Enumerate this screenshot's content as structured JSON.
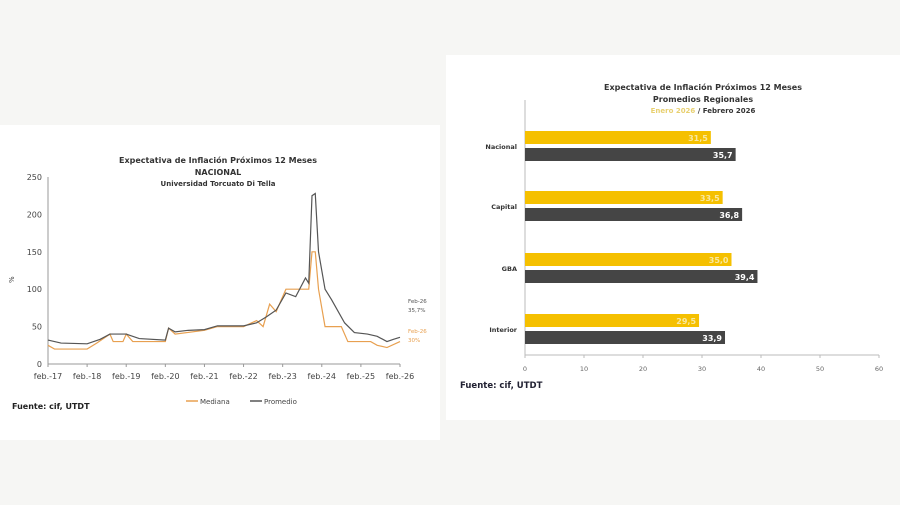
{
  "chart_data": [
    {
      "type": "line",
      "title": "Expectativa de Inflación Próximos 12 Meses",
      "subtitle": "NACIONAL",
      "subtitle2": "Universidad Torcuato Di Tella",
      "ylabel": "%",
      "ylim": [
        0,
        250
      ],
      "yticks": [
        0,
        50,
        100,
        150,
        200,
        250
      ],
      "xticks": [
        "feb.-17",
        "feb.-18",
        "feb.-19",
        "feb.-20",
        "feb.-21",
        "feb.-22",
        "feb.-23",
        "feb.-24",
        "feb.-25",
        "feb.-26"
      ],
      "grid": false,
      "legend_position": "bottom",
      "source": "Fuente: cif, UTDT",
      "series": [
        {
          "name": "Mediana",
          "color": "#e8a050",
          "points": [
            [
              "2017-02",
              25
            ],
            [
              "2017-04",
              20
            ],
            [
              "2018-02",
              20
            ],
            [
              "2018-05",
              28
            ],
            [
              "2018-09",
              40
            ],
            [
              "2018-10",
              30
            ],
            [
              "2019-01",
              30
            ],
            [
              "2019-02",
              40
            ],
            [
              "2019-04",
              30
            ],
            [
              "2020-02",
              30
            ],
            [
              "2020-03",
              48
            ],
            [
              "2020-05",
              40
            ],
            [
              "2021-02",
              45
            ],
            [
              "2021-06",
              50
            ],
            [
              "2022-02",
              50
            ],
            [
              "2022-06",
              58
            ],
            [
              "2022-08",
              50
            ],
            [
              "2022-10",
              80
            ],
            [
              "2022-12",
              70
            ],
            [
              "2023-03",
              100
            ],
            [
              "2023-10",
              100
            ],
            [
              "2023-11",
              150
            ],
            [
              "2023-12",
              150
            ],
            [
              "2024-01",
              100
            ],
            [
              "2024-03",
              50
            ],
            [
              "2024-08",
              50
            ],
            [
              "2024-10",
              30
            ],
            [
              "2025-05",
              30
            ],
            [
              "2025-07",
              25
            ],
            [
              "2025-10",
              22
            ],
            [
              "2026-02",
              30
            ]
          ],
          "annotation": [
            "Feb-26",
            "30%"
          ]
        },
        {
          "name": "Promedio",
          "color": "#555555",
          "points": [
            [
              "2017-02",
              32
            ],
            [
              "2017-06",
              28
            ],
            [
              "2018-02",
              27
            ],
            [
              "2018-06",
              33
            ],
            [
              "2018-09",
              40
            ],
            [
              "2019-02",
              40
            ],
            [
              "2019-06",
              34
            ],
            [
              "2020-02",
              32
            ],
            [
              "2020-03",
              48
            ],
            [
              "2020-05",
              43
            ],
            [
              "2020-09",
              45
            ],
            [
              "2021-02",
              46
            ],
            [
              "2021-06",
              51
            ],
            [
              "2022-02",
              51
            ],
            [
              "2022-06",
              55
            ],
            [
              "2022-09",
              63
            ],
            [
              "2022-12",
              72
            ],
            [
              "2023-03",
              95
            ],
            [
              "2023-06",
              90
            ],
            [
              "2023-09",
              115
            ],
            [
              "2023-10",
              108
            ],
            [
              "2023-11",
              225
            ],
            [
              "2023-12",
              228
            ],
            [
              "2024-01",
              150
            ],
            [
              "2024-03",
              100
            ],
            [
              "2024-05",
              86
            ],
            [
              "2024-09",
              55
            ],
            [
              "2024-12",
              42
            ],
            [
              "2025-04",
              40
            ],
            [
              "2025-07",
              37
            ],
            [
              "2025-10",
              30
            ],
            [
              "2025-12",
              33
            ],
            [
              "2026-02",
              35.7
            ]
          ],
          "annotation": [
            "Feb-26",
            "35,7%"
          ]
        }
      ]
    },
    {
      "type": "bar",
      "orientation": "horizontal",
      "title": "Expectativa de Inflación Próximos 12 Meses",
      "subtitle": "Promedios Regionales",
      "subtitle_series1": "Enero 2026",
      "subtitle_sep": " / ",
      "subtitle_series2": "Febrero 2026",
      "categories": [
        "Nacional",
        "Capital",
        "GBA",
        "Interior"
      ],
      "xlim": [
        0,
        60
      ],
      "xticks": [
        0,
        10,
        20,
        30,
        40,
        50,
        60
      ],
      "source": "Fuente: cif, UTDT",
      "series": [
        {
          "name": "Enero 2026",
          "color": "#f5c000",
          "values": [
            31.5,
            33.5,
            35.0,
            29.5
          ],
          "labels": [
            "31,5",
            "33,5",
            "35,0",
            "29,5"
          ]
        },
        {
          "name": "Febrero 2026",
          "color": "#454545",
          "values": [
            35.7,
            36.8,
            39.4,
            33.9
          ],
          "labels": [
            "35,7",
            "36,8",
            "39,4",
            "33,9"
          ]
        }
      ]
    }
  ]
}
